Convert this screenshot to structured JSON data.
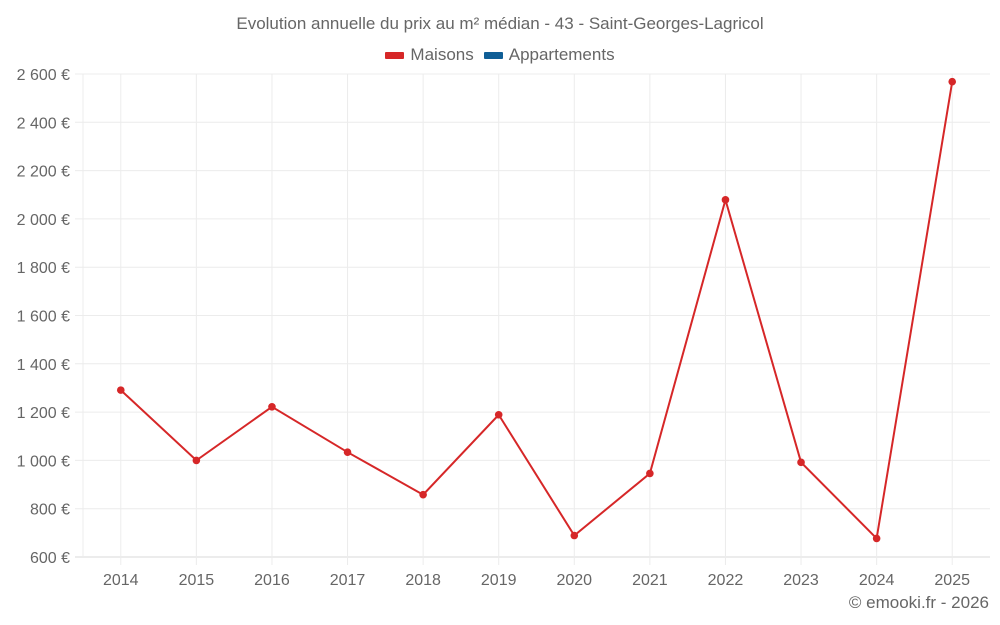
{
  "title": "Evolution annuelle du prix au m² médian - 43 - Saint-Georges-Lagricol",
  "legend": [
    {
      "label": "Maisons",
      "color": "#d62728"
    },
    {
      "label": "Appartements",
      "color": "#0f5e96"
    }
  ],
  "credit": "© emooki.fr - 2026",
  "chart_data": {
    "type": "line",
    "title": "Evolution annuelle du prix au m² médian - 43 - Saint-Georges-Lagricol",
    "xlabel": "",
    "ylabel": "",
    "categories": [
      "2014",
      "2015",
      "2016",
      "2017",
      "2018",
      "2019",
      "2020",
      "2021",
      "2022",
      "2023",
      "2024",
      "2025"
    ],
    "series": [
      {
        "name": "Maisons",
        "color": "#d62728",
        "values": [
          1291,
          1000,
          1222,
          1034,
          858,
          1189,
          689,
          946,
          2079,
          992,
          677,
          2568
        ]
      },
      {
        "name": "Appartements",
        "color": "#0f5e96",
        "values": []
      }
    ],
    "ylim": [
      600,
      2600
    ],
    "yticks": [
      600,
      800,
      1000,
      1200,
      1400,
      1600,
      1800,
      2000,
      2200,
      2400,
      2600
    ],
    "ytick_labels": [
      "600 €",
      "800 €",
      "1 000 €",
      "1 200 €",
      "1 400 €",
      "1 600 €",
      "1 800 €",
      "2 000 €",
      "2 200 €",
      "2 400 €",
      "2 600 €"
    ],
    "grid": true,
    "legend_position": "top"
  }
}
